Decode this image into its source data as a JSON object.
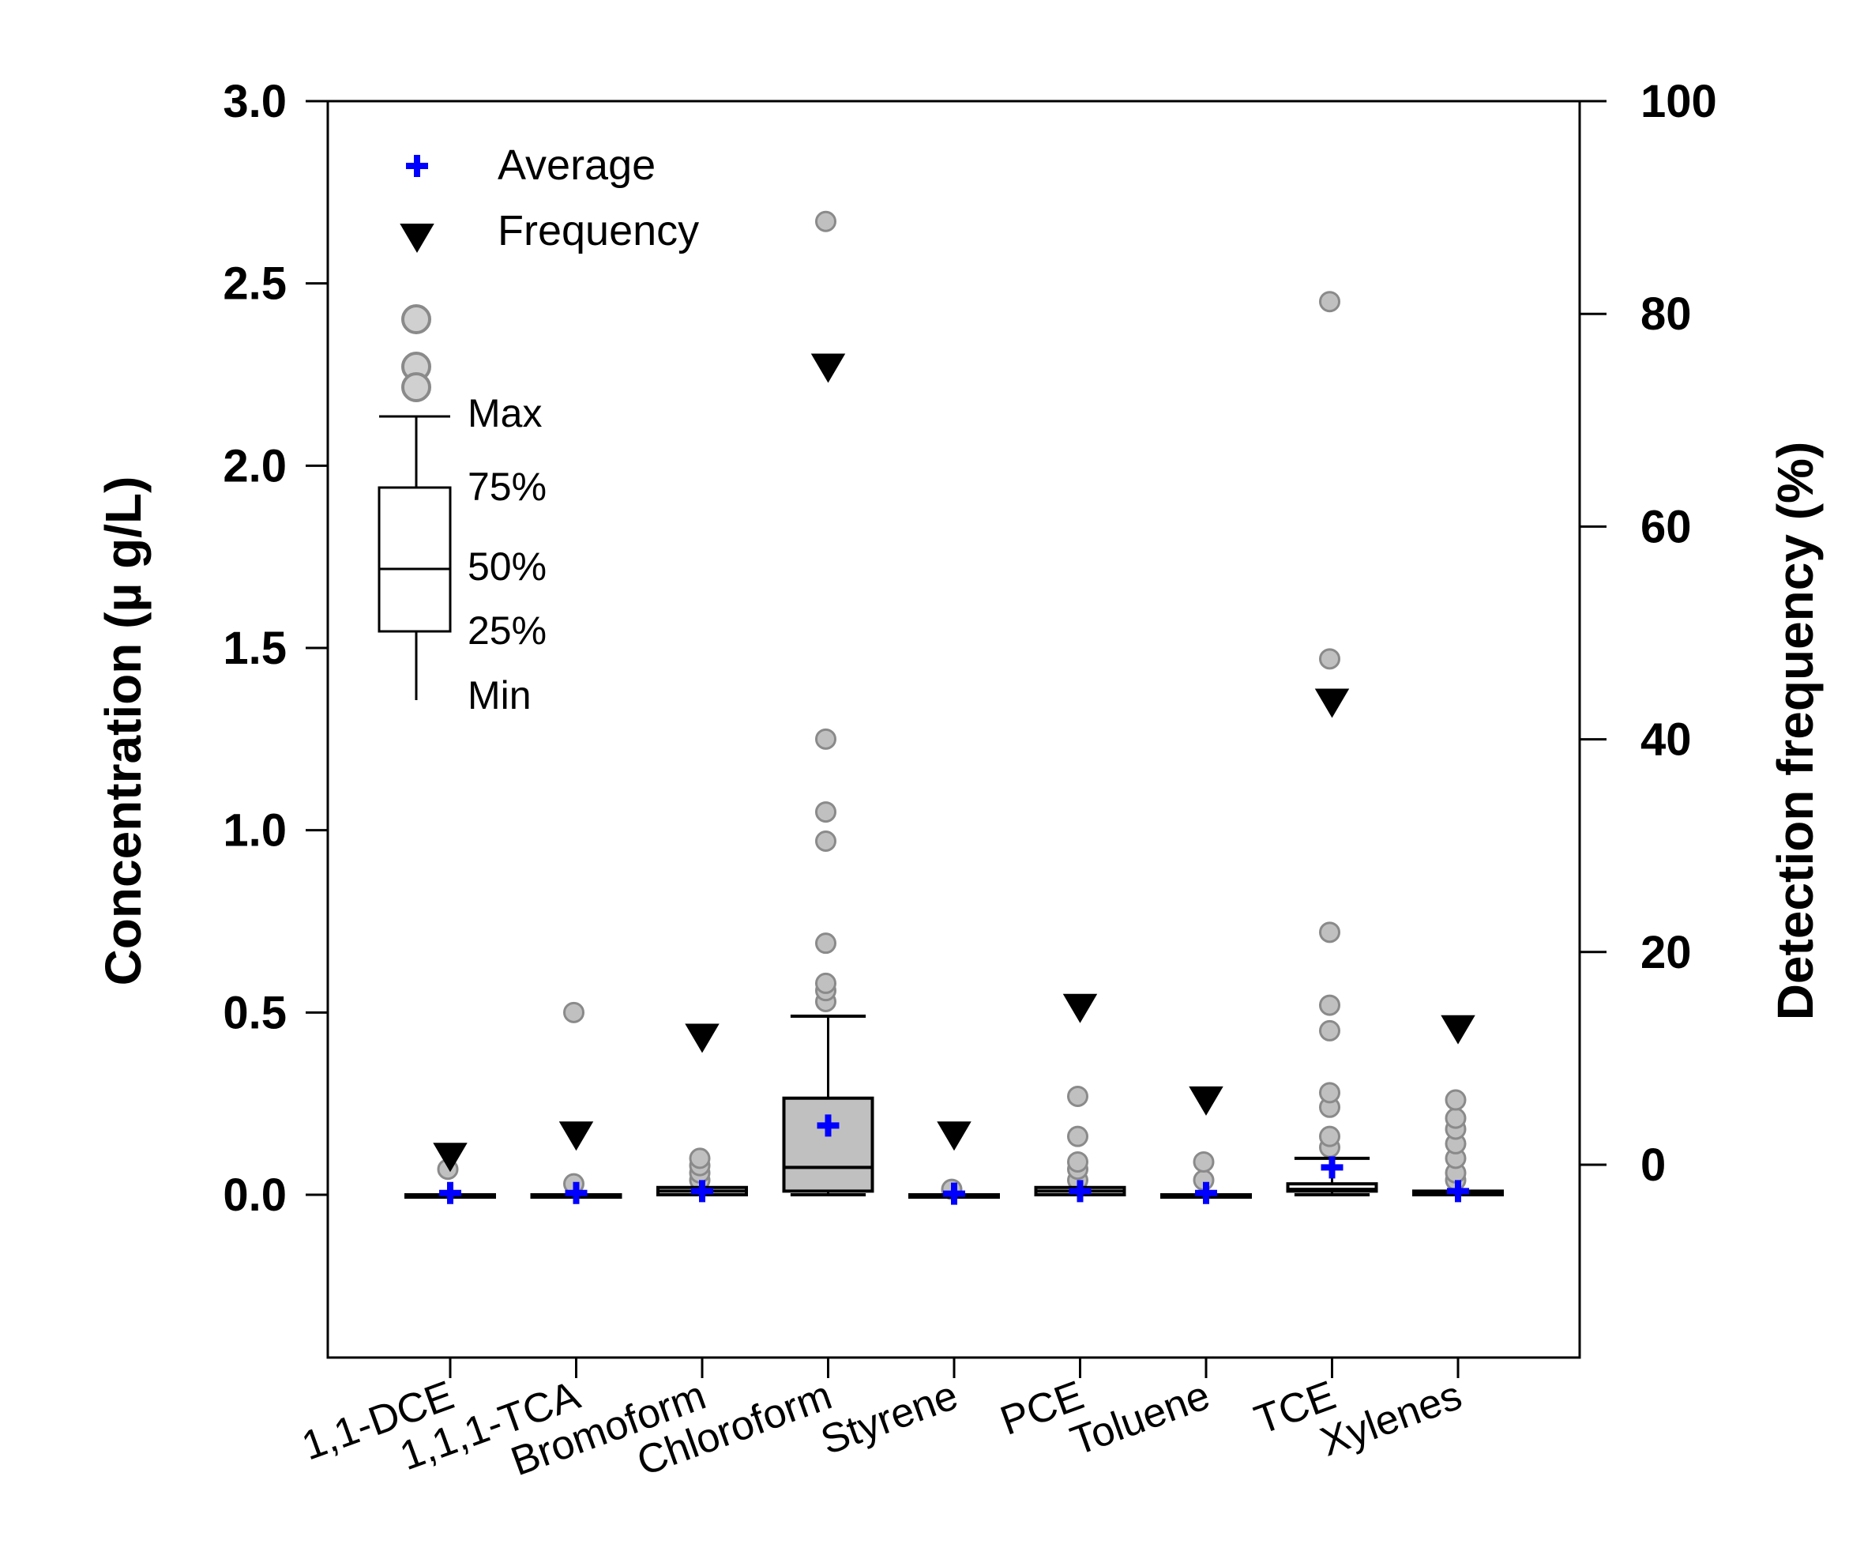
{
  "chart_data": {
    "type": "boxplot",
    "categories": [
      "1,1-DCE",
      "1,1,1-TCA",
      "Bromoform",
      "Chloroform",
      "Styrene",
      "PCE",
      "Toluene",
      "TCE",
      "Xylenes"
    ],
    "left_axis": {
      "label": "Concentration (µ g/L)",
      "range": [
        -0.45,
        3.0
      ],
      "ticks": [
        0.0,
        0.5,
        1.0,
        1.5,
        2.0,
        2.5,
        3.0
      ],
      "tick_labels": [
        "0.0",
        "0.5",
        "1.0",
        "1.5",
        "2.0",
        "2.5",
        "3.0"
      ]
    },
    "right_axis": {
      "label": "Detection frequency (%)",
      "range": [
        -20,
        100
      ],
      "ticks": [
        0,
        20,
        40,
        60,
        80,
        100
      ],
      "tick_labels": [
        "0",
        "20",
        "40",
        "60",
        "80",
        "100"
      ]
    },
    "boxes": [
      {
        "name": "1,1-DCE",
        "min": 0,
        "q1": 0,
        "median": 0,
        "q3": 0,
        "max": 0,
        "outliers": [
          0.07
        ],
        "average": 0.005,
        "frequency": 0.8
      },
      {
        "name": "1,1,1-TCA",
        "min": 0,
        "q1": 0,
        "median": 0,
        "q3": 0,
        "max": 0,
        "outliers": [
          0.03,
          0.5
        ],
        "average": 0.005,
        "frequency": 2.8
      },
      {
        "name": "Bromoform",
        "min": 0,
        "q1": 0,
        "median": 0.01,
        "q3": 0.02,
        "max": 0.02,
        "outliers": [
          0.04,
          0.06,
          0.08,
          0.1
        ],
        "average": 0.01,
        "frequency": 12.0
      },
      {
        "name": "Chloroform",
        "min": 0,
        "q1": 0.01,
        "median": 0.075,
        "q3": 0.265,
        "max": 0.49,
        "outliers": [
          0.53,
          0.56,
          0.58,
          0.69,
          0.97,
          1.05,
          1.25,
          2.67
        ],
        "average": 0.19,
        "frequency": 75.0
      },
      {
        "name": "Styrene",
        "min": 0,
        "q1": 0,
        "median": 0,
        "q3": 0,
        "max": 0,
        "outliers": [
          0.015
        ],
        "average": 0.003,
        "frequency": 2.8
      },
      {
        "name": "PCE",
        "min": 0,
        "q1": 0,
        "median": 0.01,
        "q3": 0.02,
        "max": 0.02,
        "outliers": [
          0.04,
          0.07,
          0.09,
          0.16,
          0.27
        ],
        "average": 0.01,
        "frequency": 14.8
      },
      {
        "name": "Toluene",
        "min": 0,
        "q1": 0,
        "median": 0,
        "q3": 0,
        "max": 0,
        "outliers": [
          0.04,
          0.09
        ],
        "average": 0.005,
        "frequency": 6.1
      },
      {
        "name": "TCE",
        "min": 0,
        "q1": 0.01,
        "median": 0.015,
        "q3": 0.03,
        "max": 0.1,
        "outliers": [
          0.13,
          0.16,
          0.24,
          0.28,
          0.45,
          0.52,
          0.72,
          1.47,
          2.45
        ],
        "average": 0.075,
        "frequency": 43.5
      },
      {
        "name": "Xylenes",
        "min": 0,
        "q1": 0,
        "median": 0.005,
        "q3": 0.01,
        "max": 0.01,
        "outliers": [
          0.04,
          0.06,
          0.1,
          0.14,
          0.18,
          0.21,
          0.26
        ],
        "average": 0.01,
        "frequency": 12.8
      }
    ],
    "legend": {
      "average_label": "Average",
      "frequency_label": "Frequency"
    },
    "box_key": {
      "labels": [
        "Max",
        "75%",
        "50%",
        "25%",
        "Min"
      ]
    },
    "colors": {
      "average": "#0000ff",
      "frequency": "#000000",
      "outlier_fill": "#c0c0c0",
      "outlier_stroke": "#8a8a8a",
      "box_fill": "#c0c0c0"
    }
  }
}
